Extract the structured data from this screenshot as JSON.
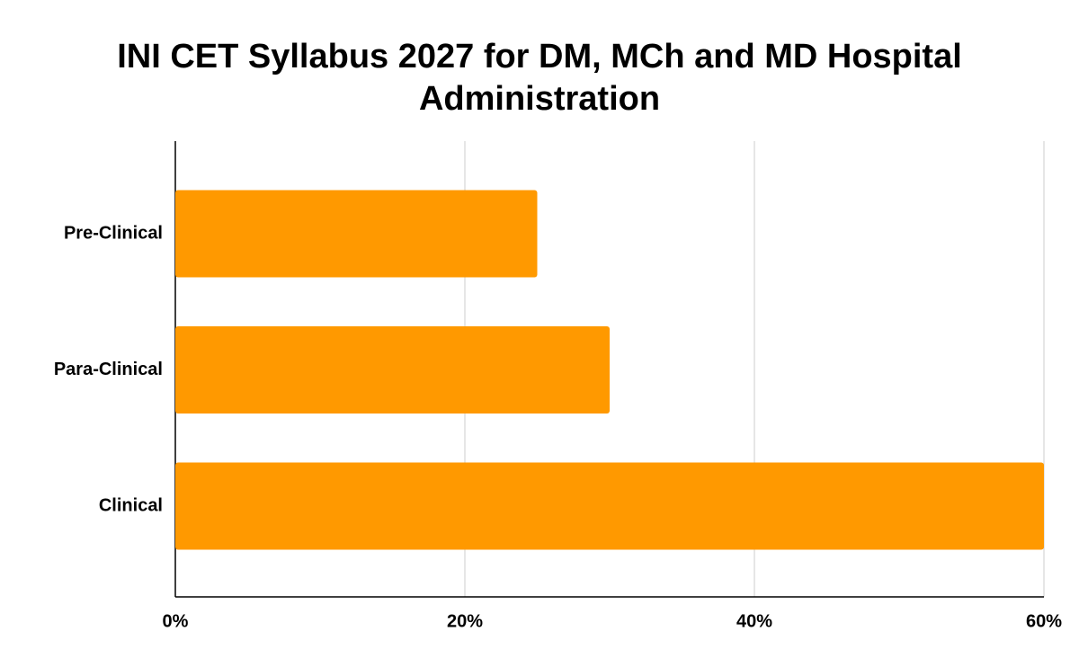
{
  "chart_data": {
    "type": "bar",
    "orientation": "horizontal",
    "title": "INI CET Syllabus 2027 for DM, MCh and MD Hospital Administration",
    "categories": [
      "Pre-Clinical",
      "Para-Clinical",
      "Clinical"
    ],
    "values": [
      25,
      30,
      60
    ],
    "color": "#ff9900",
    "xlim": [
      0,
      60
    ],
    "xticks": [
      {
        "value": 0,
        "label": "0%"
      },
      {
        "value": 20,
        "label": "20%"
      },
      {
        "value": 40,
        "label": "40%"
      },
      {
        "value": 60,
        "label": "60%"
      }
    ],
    "grid": true
  }
}
